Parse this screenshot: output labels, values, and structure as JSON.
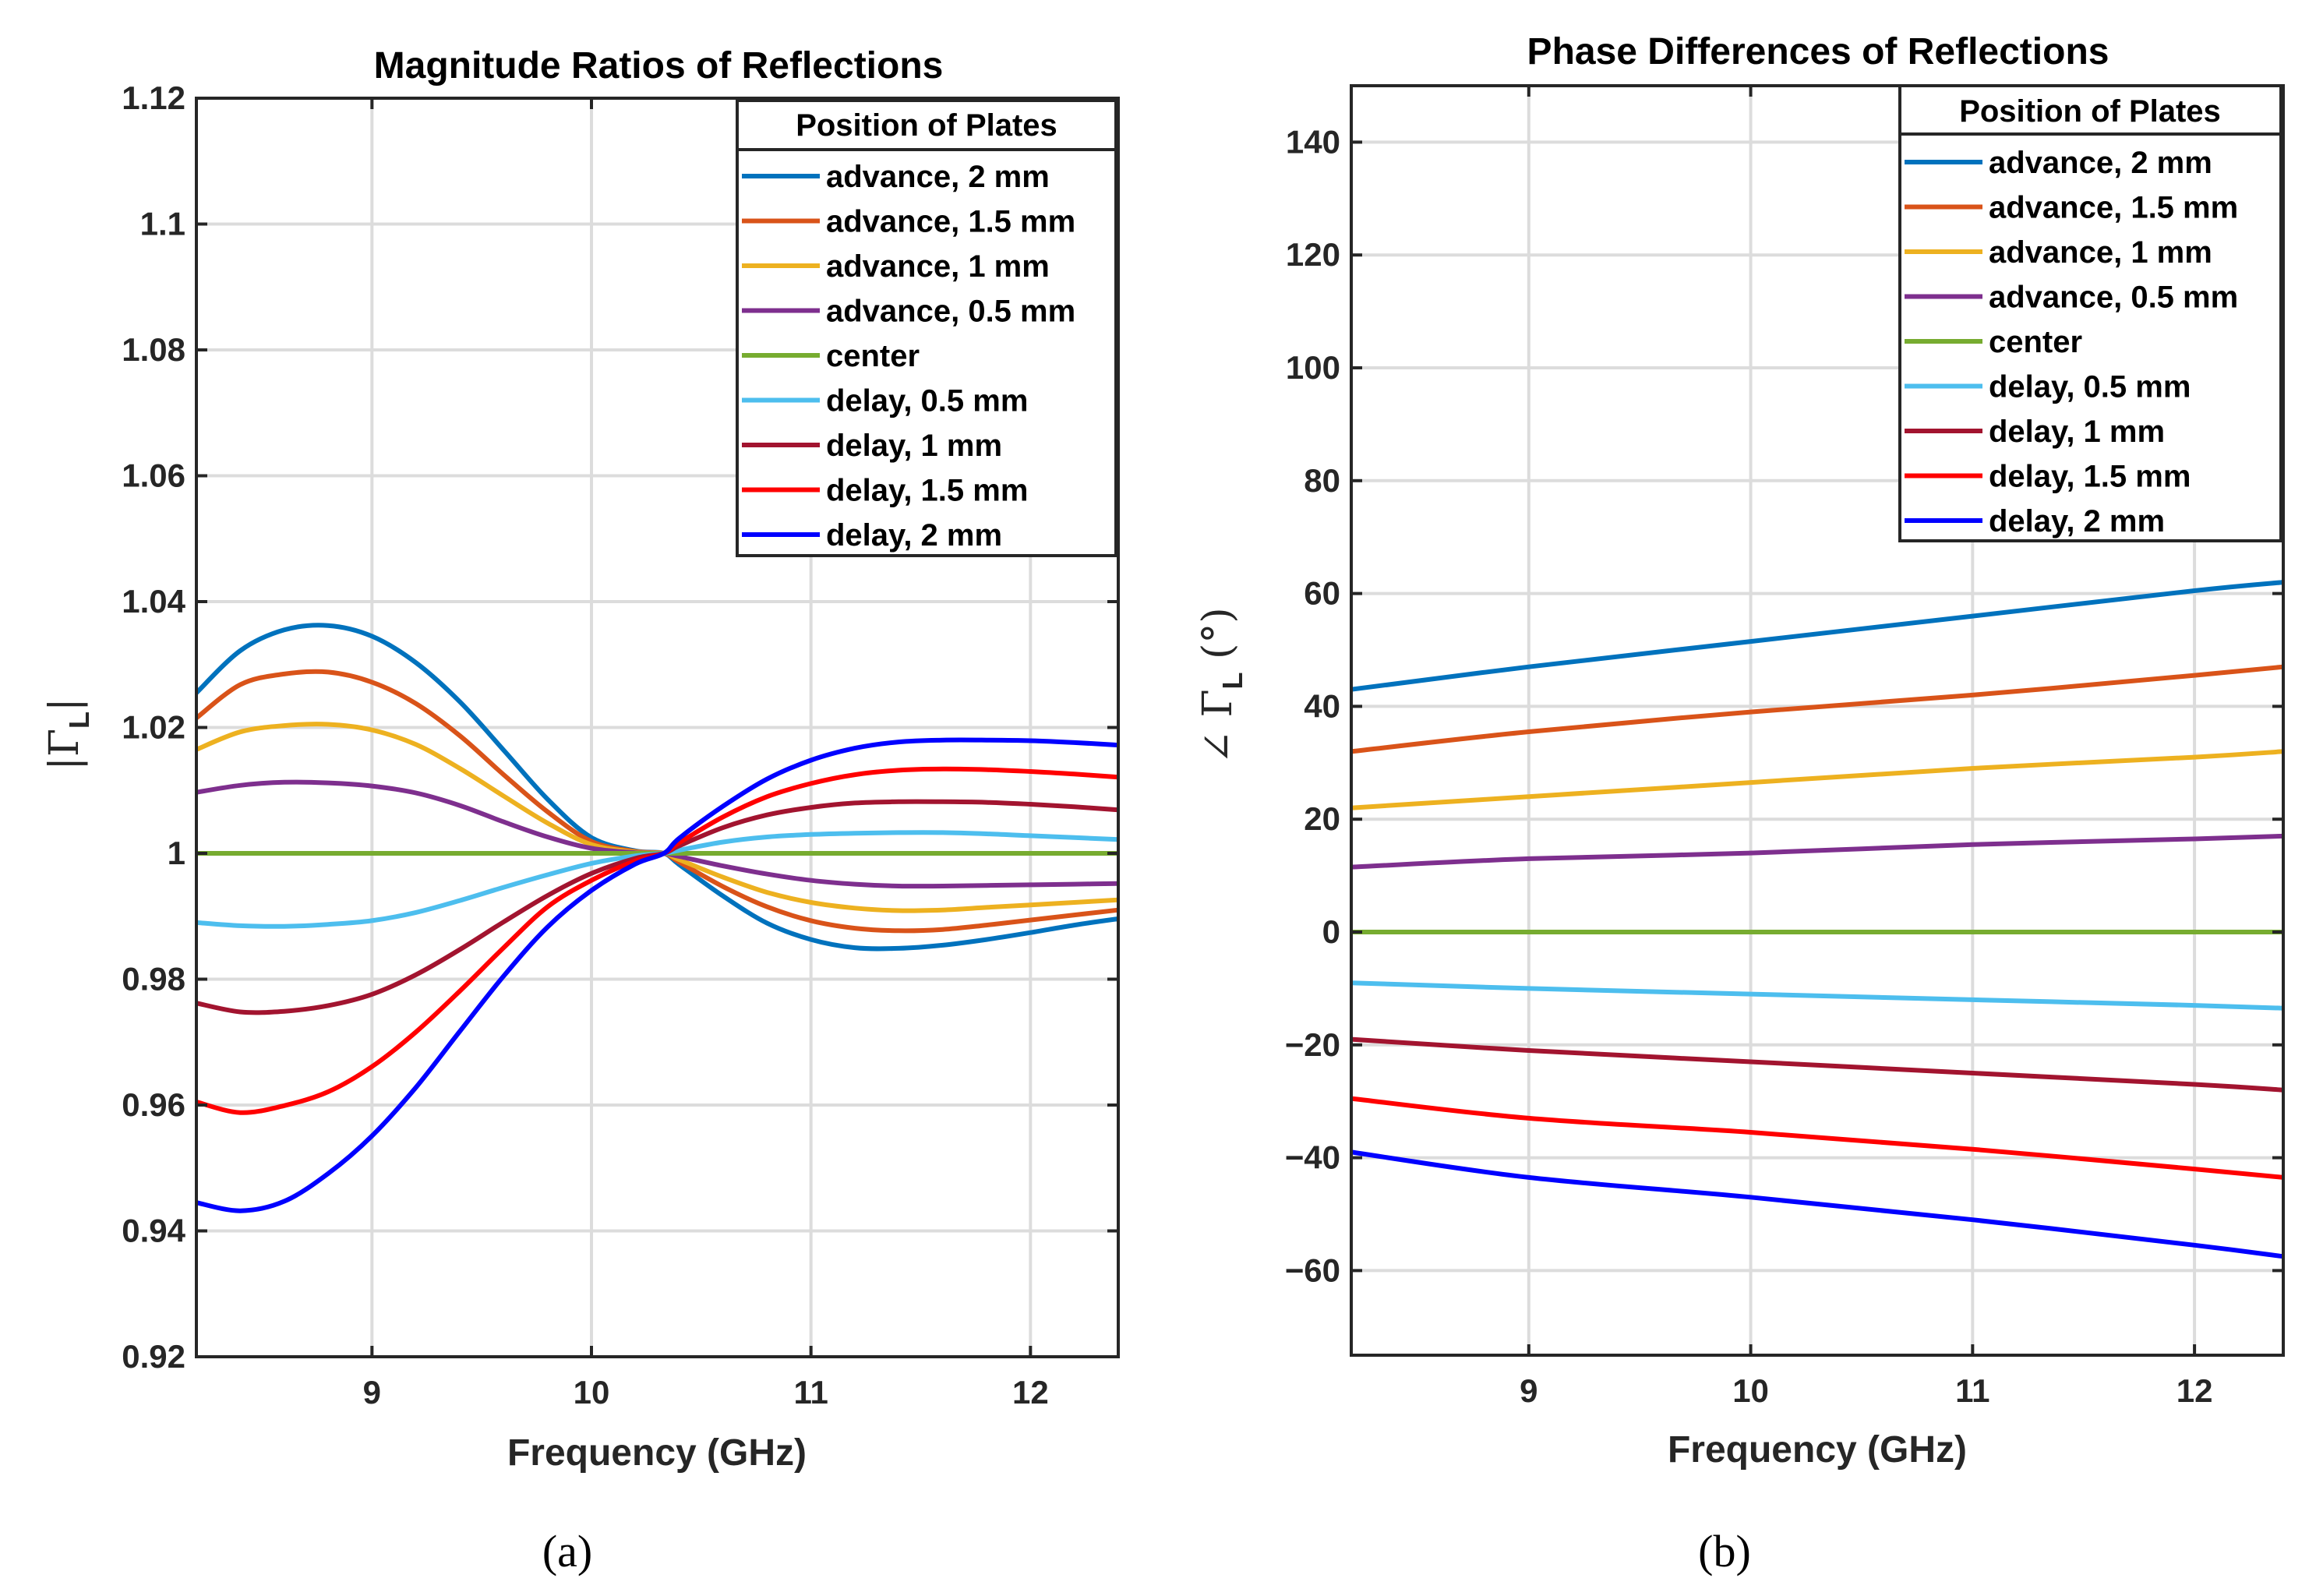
{
  "chart_data": [
    {
      "type": "line",
      "title": "Magnitude Ratios of Reflections",
      "xlabel": "Frequency (GHz)",
      "ylabel": "|Γ",
      "ylabel_sub": "L",
      "ylabel_suffix": "|",
      "xlim": [
        8.2,
        12.4
      ],
      "ylim": [
        0.92,
        1.12
      ],
      "xticks": [
        9,
        10,
        11,
        12
      ],
      "xtick_labels": [
        "9",
        "10",
        "11",
        "12"
      ],
      "yticks": [
        0.92,
        0.94,
        0.96,
        0.98,
        1,
        1.02,
        1.04,
        1.06,
        1.08,
        1.1,
        1.12
      ],
      "ytick_labels": [
        "0.92",
        "0.94",
        "0.96",
        "0.98",
        "1",
        "1.02",
        "1.04",
        "1.06",
        "1.08",
        "1.1",
        "1.12"
      ],
      "grid": true,
      "legend_position": "top-right",
      "legend_title": "Position of Plates",
      "caption": "(a)",
      "x": [
        8.2,
        8.4,
        8.6,
        8.8,
        9.0,
        9.2,
        9.4,
        9.6,
        9.8,
        10.0,
        10.2,
        10.33,
        10.4,
        10.6,
        10.8,
        11.0,
        11.2,
        11.4,
        11.6,
        11.8,
        12.0,
        12.2,
        12.4
      ],
      "series": [
        {
          "name": "advance, 2 mm",
          "color": "#0072BD",
          "values": [
            1.0255,
            1.0322,
            1.0355,
            1.0362,
            1.0345,
            1.0303,
            1.0241,
            1.0164,
            1.0086,
            1.0025,
            1.0004,
            1.0,
            0.9982,
            0.9932,
            0.9889,
            0.9863,
            0.985,
            0.9849,
            0.9854,
            0.9863,
            0.9874,
            0.9886,
            0.9896
          ]
        },
        {
          "name": "advance, 1.5 mm",
          "color": "#D95319",
          "values": [
            1.0215,
            1.0268,
            1.0285,
            1.0288,
            1.0272,
            1.0238,
            1.0187,
            1.0125,
            1.0066,
            1.0019,
            1.0003,
            1.0,
            0.9986,
            0.9947,
            0.9915,
            0.9893,
            0.9881,
            0.9877,
            0.9879,
            0.9886,
            0.9894,
            0.9902,
            0.991
          ]
        },
        {
          "name": "advance, 1 mm",
          "color": "#EDB120",
          "values": [
            1.0165,
            1.0193,
            1.0203,
            1.0205,
            1.0196,
            1.0173,
            1.0135,
            1.0091,
            1.0048,
            1.0014,
            1.0002,
            1.0,
            0.999,
            0.9962,
            0.9938,
            0.9922,
            0.9913,
            0.9909,
            0.991,
            0.9914,
            0.9918,
            0.9922,
            0.9926
          ]
        },
        {
          "name": "advance, 0.5 mm",
          "color": "#7E2F8E",
          "values": [
            1.0097,
            1.0108,
            1.0113,
            1.0112,
            1.0107,
            1.0096,
            1.0076,
            1.005,
            1.0026,
            1.0008,
            1.0001,
            1.0,
            0.9995,
            0.998,
            0.9967,
            0.9957,
            0.9951,
            0.9948,
            0.9948,
            0.9949,
            0.995,
            0.9951,
            0.9952
          ]
        },
        {
          "name": "center",
          "color": "#77AC30",
          "values": [
            1.0,
            1.0,
            1.0,
            1.0,
            1.0,
            1.0,
            1.0,
            1.0,
            1.0,
            1.0,
            1.0,
            1.0,
            1.0,
            1.0,
            1.0,
            1.0,
            1.0,
            1.0,
            1.0,
            1.0,
            1.0,
            1.0,
            1.0
          ]
        },
        {
          "name": "delay, 0.5 mm",
          "color": "#4DBEEE",
          "values": [
            0.989,
            0.9885,
            0.9884,
            0.9887,
            0.9893,
            0.9906,
            0.9925,
            0.9946,
            0.9966,
            0.9984,
            0.9996,
            1.0,
            1.0005,
            1.0018,
            1.0026,
            1.003,
            1.0032,
            1.0033,
            1.0033,
            1.0031,
            1.0028,
            1.0025,
            1.0022
          ]
        },
        {
          "name": "delay, 1 mm",
          "color": "#A2142F",
          "values": [
            0.9762,
            0.9748,
            0.9749,
            0.9758,
            0.9776,
            0.9807,
            0.9847,
            0.9891,
            0.9933,
            0.9968,
            0.9992,
            1.0,
            1.0012,
            1.0041,
            1.0061,
            1.0073,
            1.008,
            1.0082,
            1.0082,
            1.0081,
            1.0078,
            1.0074,
            1.0069
          ]
        },
        {
          "name": "delay, 1.5 mm",
          "color": "#FF0000",
          "values": [
            0.9605,
            0.9588,
            0.9599,
            0.9621,
            0.9661,
            0.9716,
            0.9781,
            0.985,
            0.9915,
            0.9957,
            0.9988,
            1.0,
            1.0017,
            1.0058,
            1.009,
            1.0111,
            1.0125,
            1.0132,
            1.0134,
            1.0133,
            1.013,
            1.0126,
            1.0121
          ]
        },
        {
          "name": "delay, 2 mm",
          "color": "#0000FF",
          "values": [
            0.9445,
            0.9432,
            0.9447,
            0.9491,
            0.9551,
            0.9628,
            0.9717,
            0.9805,
            0.9883,
            0.9941,
            0.9983,
            1.0,
            1.0024,
            1.0075,
            1.0118,
            1.0148,
            1.0167,
            1.0177,
            1.018,
            1.018,
            1.0179,
            1.0176,
            1.0172
          ]
        }
      ]
    },
    {
      "type": "line",
      "title": "Phase Differences of Reflections",
      "xlabel": "Frequency (GHz)",
      "ylabel": "∠ Γ",
      "ylabel_sub": "L",
      "ylabel_suffix": " (°)",
      "xlim": [
        8.2,
        12.4
      ],
      "ylim": [
        -75,
        150
      ],
      "xticks": [
        9,
        10,
        11,
        12
      ],
      "xtick_labels": [
        "9",
        "10",
        "11",
        "12"
      ],
      "yticks": [
        -60,
        -40,
        -20,
        0,
        20,
        40,
        60,
        80,
        100,
        120,
        140
      ],
      "ytick_labels": [
        "−60",
        "−40",
        "−20",
        "0",
        "20",
        "40",
        "60",
        "80",
        "100",
        "120",
        "140"
      ],
      "grid": true,
      "legend_position": "top-right",
      "legend_title": "Position of Plates",
      "caption": "(b)",
      "x": [
        8.2,
        9.0,
        10.0,
        11.0,
        12.0,
        12.4
      ],
      "series": [
        {
          "name": "advance, 2 mm",
          "color": "#0072BD",
          "values": [
            43,
            47,
            51.5,
            56,
            60.5,
            62
          ]
        },
        {
          "name": "advance, 1.5 mm",
          "color": "#D95319",
          "values": [
            32,
            35.5,
            39,
            42,
            45.5,
            47
          ]
        },
        {
          "name": "advance, 1 mm",
          "color": "#EDB120",
          "values": [
            22,
            24,
            26.5,
            29,
            31,
            32
          ]
        },
        {
          "name": "advance, 0.5 mm",
          "color": "#7E2F8E",
          "values": [
            11.5,
            13,
            14,
            15.5,
            16.5,
            17
          ]
        },
        {
          "name": "center",
          "color": "#77AC30",
          "values": [
            0,
            0,
            0,
            0,
            0,
            0
          ]
        },
        {
          "name": "delay, 0.5 mm",
          "color": "#4DBEEE",
          "values": [
            -9,
            -10,
            -11,
            -12,
            -13,
            -13.5
          ]
        },
        {
          "name": "delay, 1 mm",
          "color": "#A2142F",
          "values": [
            -19,
            -21,
            -23,
            -25,
            -27,
            -28
          ]
        },
        {
          "name": "delay, 1.5 mm",
          "color": "#FF0000",
          "values": [
            -29.5,
            -33,
            -35.5,
            -38.5,
            -42,
            -43.5
          ]
        },
        {
          "name": "delay, 2 mm",
          "color": "#0000FF",
          "values": [
            -39,
            -43.5,
            -47,
            -51,
            -55.5,
            -57.5
          ]
        }
      ]
    }
  ]
}
